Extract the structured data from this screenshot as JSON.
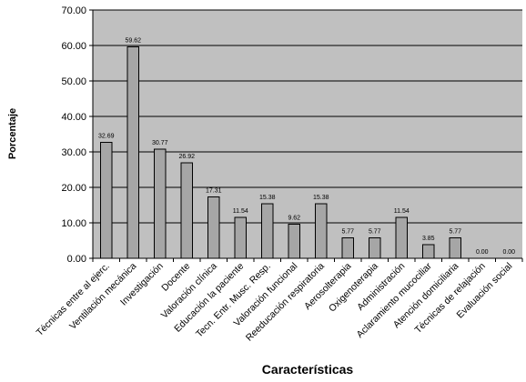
{
  "chart_data": {
    "type": "bar",
    "title": "",
    "xlabel": "Características",
    "ylabel": "Porcentaje",
    "ylim": [
      0,
      70
    ],
    "ytick_step": 10,
    "ytick_labels": [
      "0.00",
      "10.00",
      "20.00",
      "30.00",
      "40.00",
      "50.00",
      "60.00",
      "70.00"
    ],
    "grid": true,
    "legend": "none",
    "categories": [
      "Técnicas entre al ejerc.",
      "Ventilación mecánica",
      "Investigación",
      "Docente",
      "Valoración clínica",
      "Educación la paciente",
      "Tecn. Entr. Musc. Resp.",
      "Valoración funcional",
      "Reeducación respiratoria",
      "Aerosolterapia",
      "Oxigenoterapia",
      "Administración",
      "Aclaramiento mucociliar",
      "Atención domiciliaria",
      "Técnicas de relajación",
      "Evaluación social"
    ],
    "values": [
      32.69,
      59.62,
      30.77,
      26.92,
      17.31,
      11.54,
      15.38,
      9.62,
      15.38,
      5.77,
      5.77,
      11.54,
      3.85,
      5.77,
      0.0,
      0.0
    ],
    "value_labels": [
      "32.69",
      "59.62",
      "30.77",
      "26.92",
      "17.31",
      "11.54",
      "15.38",
      "9.62",
      "15.38",
      "5.77",
      "5.77",
      "11.54",
      "3.85",
      "5.77",
      "0.00",
      "0.00"
    ],
    "colors": {
      "plot_background": "#c0c0c0",
      "bar_fill": "#a6a6a6",
      "bar_stroke": "#000000",
      "gridline": "#000000"
    }
  }
}
